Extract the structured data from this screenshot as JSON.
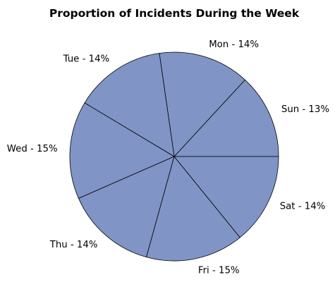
{
  "chart_data": {
    "type": "pie",
    "title": "Proportion of Incidents During the Week",
    "categories": [
      "Sun",
      "Mon",
      "Tue",
      "Wed",
      "Thu",
      "Fri",
      "Sat"
    ],
    "values": [
      13,
      14,
      14,
      15,
      14,
      15,
      14
    ],
    "labels": [
      "Sun - 13%",
      "Mon - 14%",
      "Tue - 14%",
      "Wed - 15%",
      "Thu - 14%",
      "Fri - 15%",
      "Sat - 14%"
    ],
    "start_angle_deg": 0,
    "direction": "counterclockwise",
    "slice_color": "#8094c6",
    "edge_color": "#000000",
    "legend": "none"
  }
}
